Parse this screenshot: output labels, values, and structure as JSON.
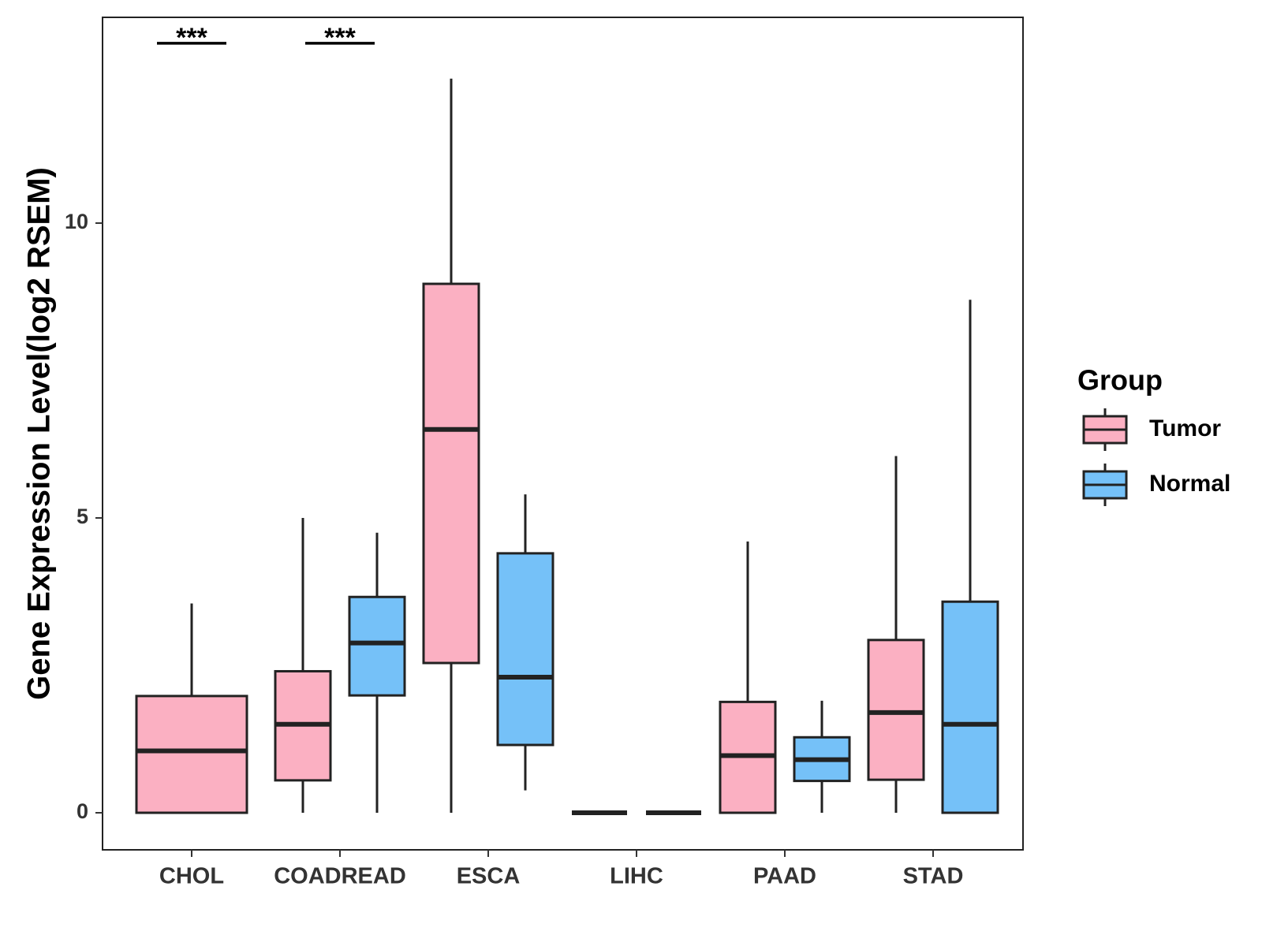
{
  "chart_data": {
    "type": "box",
    "title": "",
    "xlabel": "",
    "ylabel": "Gene Expression Level(log2 RSEM)",
    "ylim": [
      -0.62,
      13.5
    ],
    "yticks": [
      0,
      5,
      10
    ],
    "categories": [
      "CHOL",
      "COADREAD",
      "ESCA",
      "LIHC",
      "PAAD",
      "STAD"
    ],
    "legend": {
      "title": "Group",
      "position": "right",
      "entries": [
        {
          "name": "Tumor",
          "color": "#FBB0C2"
        },
        {
          "name": "Normal",
          "color": "#75C1F8"
        }
      ]
    },
    "significance": [
      {
        "category": "CHOL",
        "label": "***",
        "y": 13.05
      },
      {
        "category": "COADREAD",
        "label": "***",
        "y": 13.05
      }
    ],
    "series": [
      {
        "name": "Tumor",
        "color": "#FBB0C2",
        "boxes": [
          {
            "category": "CHOL",
            "min": 0,
            "q1": 0,
            "median": 1.05,
            "q3": 1.98,
            "max": 3.55
          },
          {
            "category": "COADREAD",
            "min": 0,
            "q1": 0.55,
            "median": 1.5,
            "q3": 2.4,
            "max": 5.0
          },
          {
            "category": "ESCA",
            "min": 0,
            "q1": 2.54,
            "median": 6.5,
            "q3": 8.97,
            "max": 12.45
          },
          {
            "category": "LIHC",
            "min": 0,
            "q1": 0,
            "median": 0,
            "q3": 0,
            "max": 0
          },
          {
            "category": "PAAD",
            "min": 0,
            "q1": 0,
            "median": 0.97,
            "q3": 1.88,
            "max": 4.6
          },
          {
            "category": "STAD",
            "min": 0,
            "q1": 0.56,
            "median": 1.7,
            "q3": 2.93,
            "max": 6.05
          }
        ]
      },
      {
        "name": "Normal",
        "color": "#75C1F8",
        "boxes": [
          {
            "category": "CHOL",
            "absent": true
          },
          {
            "category": "COADREAD",
            "min": 0,
            "q1": 1.99,
            "median": 2.88,
            "q3": 3.66,
            "max": 4.75
          },
          {
            "category": "ESCA",
            "min": 0.38,
            "q1": 1.15,
            "median": 2.3,
            "q3": 4.4,
            "max": 5.4
          },
          {
            "category": "LIHC",
            "min": 0,
            "q1": 0,
            "median": 0,
            "q3": 0,
            "max": 0
          },
          {
            "category": "PAAD",
            "min": 0,
            "q1": 0.54,
            "median": 0.9,
            "q3": 1.28,
            "max": 1.9
          },
          {
            "category": "STAD",
            "min": 0,
            "q1": 0,
            "median": 1.5,
            "q3": 3.58,
            "max": 8.7
          }
        ]
      }
    ]
  }
}
